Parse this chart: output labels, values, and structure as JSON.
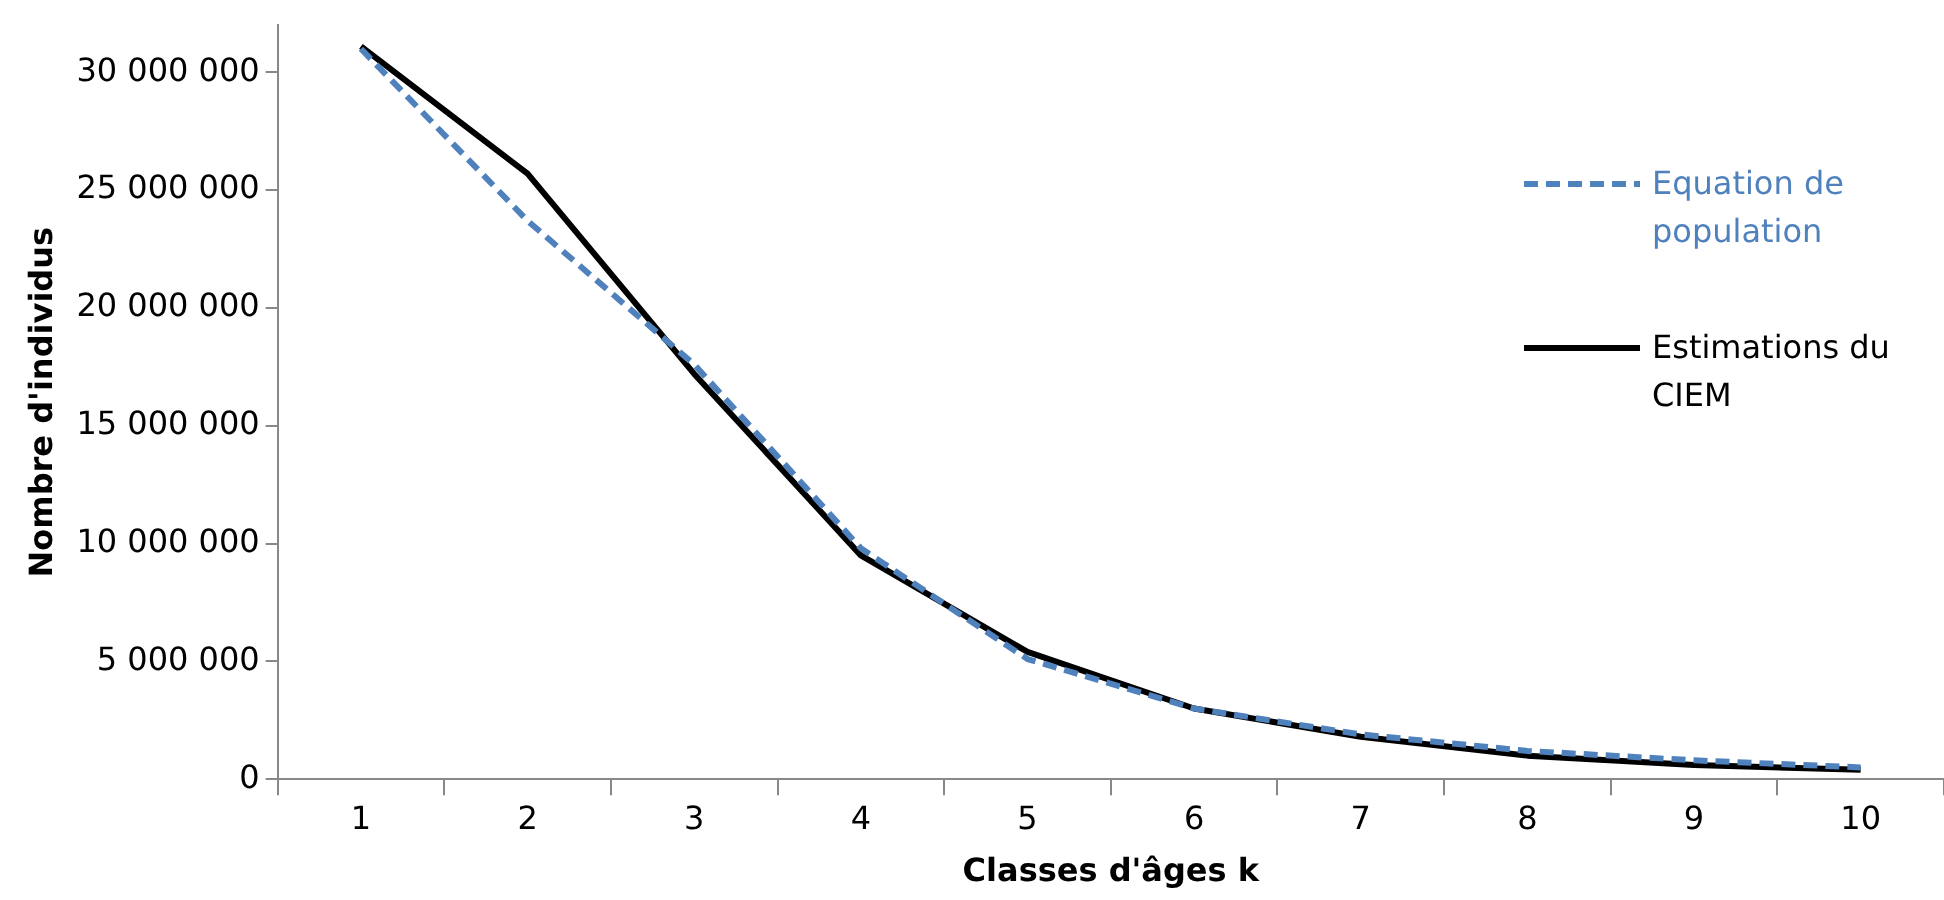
{
  "chart_data": {
    "type": "line",
    "xlabel": "Classes d'âges k",
    "ylabel": "Nombre d'individus",
    "categories": [
      "1",
      "2",
      "3",
      "4",
      "5",
      "6",
      "7",
      "8",
      "9",
      "10"
    ],
    "series": [
      {
        "name": "Equation de population",
        "color": "#4f81bd",
        "line_style": "dashed",
        "values": [
          31000000,
          23700000,
          17600000,
          9800000,
          5100000,
          3000000,
          1900000,
          1200000,
          800000,
          500000
        ]
      },
      {
        "name": "Estimations du CIEM",
        "color": "#000000",
        "line_style": "solid",
        "values": [
          31100000,
          25700000,
          17200000,
          9500000,
          5400000,
          3000000,
          1800000,
          1000000,
          600000,
          400000
        ]
      }
    ],
    "ylim": [
      0,
      32000000
    ],
    "yticks": [
      0,
      5000000,
      10000000,
      15000000,
      20000000,
      25000000,
      30000000
    ],
    "grid": false,
    "legend": "right",
    "marker": "none"
  }
}
